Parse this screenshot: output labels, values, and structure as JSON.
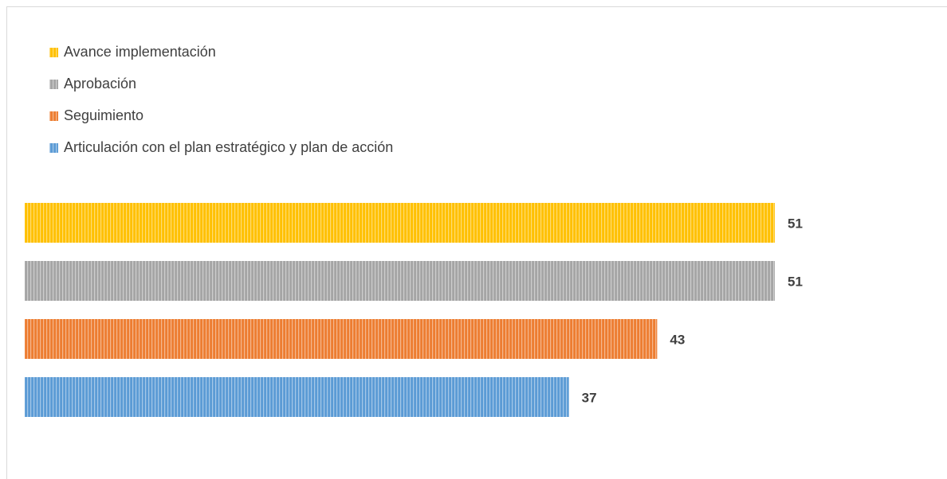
{
  "chart_data": {
    "type": "bar",
    "series": [
      {
        "name": "Avance implementación",
        "color": "#ffc000",
        "values": [
          51
        ]
      },
      {
        "name": "Aprobación",
        "color": "#a5a5a5",
        "values": [
          51
        ]
      },
      {
        "name": "Seguimiento",
        "color": "#ed7d31",
        "values": [
          43
        ]
      },
      {
        "name": "Articulación con el plan estratégico y plan de acción",
        "color": "#5b9bd5",
        "values": [
          37
        ]
      }
    ]
  }
}
